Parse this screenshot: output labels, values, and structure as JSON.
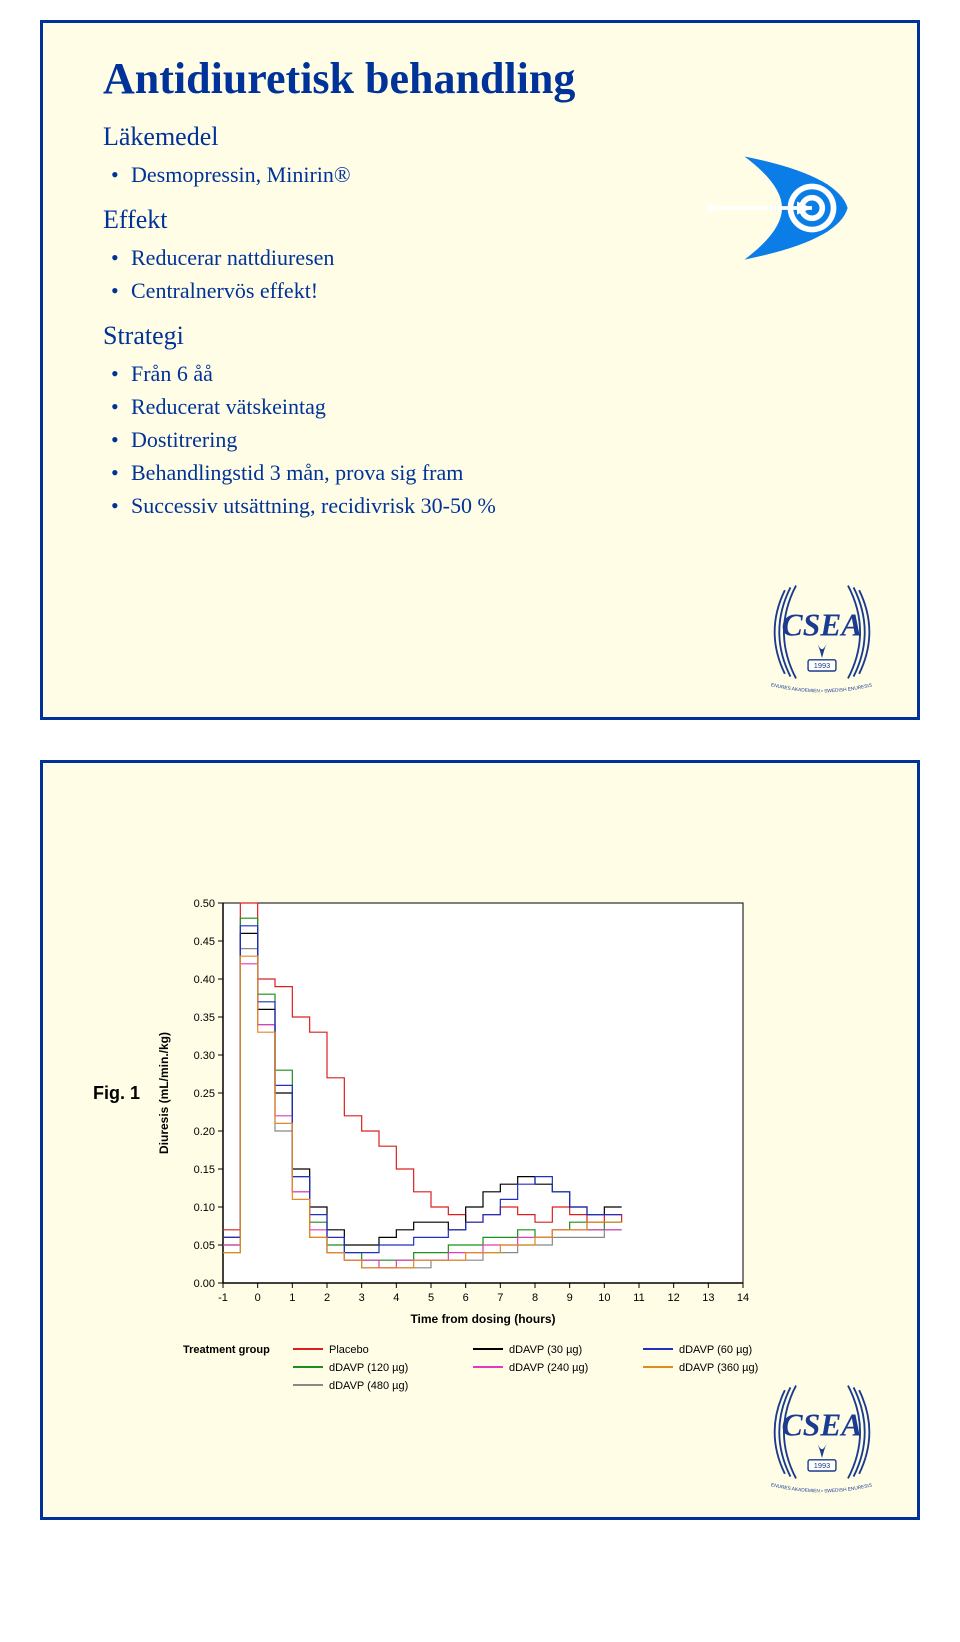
{
  "slide1": {
    "title": "Antidiuretisk behandling",
    "sections": [
      {
        "head": "Läkemedel",
        "items": [
          "Desmopressin, Minirin®"
        ]
      },
      {
        "head": "Effekt",
        "items": [
          "Reducerar nattdiuresen",
          "Centralnervös effekt!"
        ]
      },
      {
        "head": "Strategi",
        "items": [
          "Från 6 åå",
          "Reducerat vätskeintag",
          "Dostitrering",
          "Behandlingstid 3 mån, prova sig fram",
          "Successiv utsättning, recidivrisk 30-50 %"
        ]
      }
    ],
    "icons": {
      "target": {
        "bg": "#0a7de6",
        "accent": "#ffffff"
      }
    },
    "colors": {
      "slideBg": "#fffde6",
      "border": "#003399",
      "text": "#003399",
      "title_fontsize": 44,
      "head_fontsize": 26,
      "item_fontsize": 22
    },
    "logo": {
      "outer": "#1a3b8f",
      "laurel": "#1a3b8f",
      "text_mid": "CSEA",
      "year": "1993",
      "banner": "SVENSKA ENURES AKADEMIEN • SWEDISH ENURESIS ACADEMY"
    }
  },
  "slide2": {
    "fig_label": "Fig. 1",
    "chart": {
      "type": "line-step",
      "xlabel": "Time from dosing (hours)",
      "ylabel": "Diuresis (mL/min./kg)",
      "label_fontsize": 12,
      "tick_fontsize": 11,
      "xlim": [
        -1,
        14
      ],
      "ylim": [
        0,
        0.5
      ],
      "xticks": [
        -1,
        0,
        1,
        2,
        3,
        4,
        5,
        6,
        7,
        8,
        9,
        10,
        11,
        12,
        13,
        14
      ],
      "yticks": [
        0.0,
        0.05,
        0.1,
        0.15,
        0.2,
        0.25,
        0.3,
        0.35,
        0.4,
        0.45,
        0.5
      ],
      "background": "#ffffff",
      "axis_color": "#000000",
      "line_width": 1.2,
      "legend_title": "Treatment group",
      "series": [
        {
          "name": "Placebo",
          "color": "#d92020",
          "points": [
            [
              -1,
              0.07
            ],
            [
              -0.5,
              0.5
            ],
            [
              0,
              0.4
            ],
            [
              0.5,
              0.39
            ],
            [
              1,
              0.35
            ],
            [
              1.5,
              0.33
            ],
            [
              2,
              0.27
            ],
            [
              2.5,
              0.22
            ],
            [
              3,
              0.2
            ],
            [
              3.5,
              0.18
            ],
            [
              4,
              0.15
            ],
            [
              4.5,
              0.12
            ],
            [
              5,
              0.1
            ],
            [
              5.5,
              0.09
            ],
            [
              6,
              0.08
            ],
            [
              6.5,
              0.09
            ],
            [
              7,
              0.1
            ],
            [
              7.5,
              0.09
            ],
            [
              8,
              0.08
            ],
            [
              8.5,
              0.1
            ],
            [
              9,
              0.09
            ],
            [
              9.5,
              0.08
            ],
            [
              10,
              0.09
            ],
            [
              10.5,
              0.08
            ]
          ]
        },
        {
          "name": "dDAVP (120 µg)",
          "color": "#1a8f1a",
          "points": [
            [
              -1,
              0.05
            ],
            [
              -0.5,
              0.48
            ],
            [
              0,
              0.38
            ],
            [
              0.5,
              0.28
            ],
            [
              1,
              0.14
            ],
            [
              1.5,
              0.08
            ],
            [
              2,
              0.05
            ],
            [
              2.5,
              0.04
            ],
            [
              3,
              0.03
            ],
            [
              3.5,
              0.03
            ],
            [
              4,
              0.03
            ],
            [
              4.5,
              0.04
            ],
            [
              5,
              0.04
            ],
            [
              5.5,
              0.05
            ],
            [
              6,
              0.05
            ],
            [
              6.5,
              0.06
            ],
            [
              7,
              0.06
            ],
            [
              7.5,
              0.07
            ],
            [
              8,
              0.06
            ],
            [
              8.5,
              0.07
            ],
            [
              9,
              0.08
            ],
            [
              9.5,
              0.07
            ],
            [
              10,
              0.08
            ],
            [
              10.5,
              0.08
            ]
          ]
        },
        {
          "name": "dDAVP (480 µg)",
          "color": "#888888",
          "points": [
            [
              -1,
              0.04
            ],
            [
              -0.5,
              0.44
            ],
            [
              0,
              0.34
            ],
            [
              0.5,
              0.2
            ],
            [
              1,
              0.12
            ],
            [
              1.5,
              0.06
            ],
            [
              2,
              0.04
            ],
            [
              2.5,
              0.03
            ],
            [
              3,
              0.02
            ],
            [
              3.5,
              0.02
            ],
            [
              4,
              0.02
            ],
            [
              4.5,
              0.02
            ],
            [
              5,
              0.03
            ],
            [
              5.5,
              0.03
            ],
            [
              6,
              0.03
            ],
            [
              6.5,
              0.04
            ],
            [
              7,
              0.04
            ],
            [
              7.5,
              0.05
            ],
            [
              8,
              0.05
            ],
            [
              8.5,
              0.06
            ],
            [
              9,
              0.06
            ],
            [
              9.5,
              0.06
            ],
            [
              10,
              0.07
            ],
            [
              10.5,
              0.07
            ]
          ]
        },
        {
          "name": "dDAVP (30 µg)",
          "color": "#000000",
          "points": [
            [
              -1,
              0.06
            ],
            [
              -0.5,
              0.46
            ],
            [
              0,
              0.36
            ],
            [
              0.5,
              0.25
            ],
            [
              1,
              0.15
            ],
            [
              1.5,
              0.1
            ],
            [
              2,
              0.07
            ],
            [
              2.5,
              0.05
            ],
            [
              3,
              0.05
            ],
            [
              3.5,
              0.06
            ],
            [
              4,
              0.07
            ],
            [
              4.5,
              0.08
            ],
            [
              5,
              0.08
            ],
            [
              5.5,
              0.07
            ],
            [
              6,
              0.1
            ],
            [
              6.5,
              0.12
            ],
            [
              7,
              0.13
            ],
            [
              7.5,
              0.14
            ],
            [
              8,
              0.13
            ],
            [
              8.5,
              0.12
            ],
            [
              9,
              0.1
            ],
            [
              9.5,
              0.09
            ],
            [
              10,
              0.1
            ],
            [
              10.5,
              0.1
            ]
          ]
        },
        {
          "name": "dDAVP (240 µg)",
          "color": "#e03bb8",
          "points": [
            [
              -1,
              0.05
            ],
            [
              -0.5,
              0.42
            ],
            [
              0,
              0.34
            ],
            [
              0.5,
              0.22
            ],
            [
              1,
              0.12
            ],
            [
              1.5,
              0.07
            ],
            [
              2,
              0.04
            ],
            [
              2.5,
              0.03
            ],
            [
              3,
              0.03
            ],
            [
              3.5,
              0.02
            ],
            [
              4,
              0.03
            ],
            [
              4.5,
              0.03
            ],
            [
              5,
              0.03
            ],
            [
              5.5,
              0.04
            ],
            [
              6,
              0.04
            ],
            [
              6.5,
              0.05
            ],
            [
              7,
              0.05
            ],
            [
              7.5,
              0.06
            ],
            [
              8,
              0.06
            ],
            [
              8.5,
              0.07
            ],
            [
              9,
              0.07
            ],
            [
              9.5,
              0.07
            ],
            [
              10,
              0.07
            ],
            [
              10.5,
              0.07
            ]
          ]
        },
        {
          "name": "dDAVP (60 µg)",
          "color": "#2030c0",
          "points": [
            [
              -1,
              0.06
            ],
            [
              -0.5,
              0.47
            ],
            [
              0,
              0.37
            ],
            [
              0.5,
              0.26
            ],
            [
              1,
              0.14
            ],
            [
              1.5,
              0.09
            ],
            [
              2,
              0.06
            ],
            [
              2.5,
              0.04
            ],
            [
              3,
              0.04
            ],
            [
              3.5,
              0.05
            ],
            [
              4,
              0.05
            ],
            [
              4.5,
              0.06
            ],
            [
              5,
              0.06
            ],
            [
              5.5,
              0.07
            ],
            [
              6,
              0.08
            ],
            [
              6.5,
              0.09
            ],
            [
              7,
              0.11
            ],
            [
              7.5,
              0.13
            ],
            [
              8,
              0.14
            ],
            [
              8.5,
              0.12
            ],
            [
              9,
              0.1
            ],
            [
              9.5,
              0.09
            ],
            [
              10,
              0.09
            ],
            [
              10.5,
              0.09
            ]
          ]
        },
        {
          "name": "dDAVP (360 µg)",
          "color": "#e08a20",
          "points": [
            [
              -1,
              0.04
            ],
            [
              -0.5,
              0.43
            ],
            [
              0,
              0.33
            ],
            [
              0.5,
              0.21
            ],
            [
              1,
              0.11
            ],
            [
              1.5,
              0.06
            ],
            [
              2,
              0.04
            ],
            [
              2.5,
              0.03
            ],
            [
              3,
              0.02
            ],
            [
              3.5,
              0.02
            ],
            [
              4,
              0.02
            ],
            [
              4.5,
              0.03
            ],
            [
              5,
              0.03
            ],
            [
              5.5,
              0.03
            ],
            [
              6,
              0.04
            ],
            [
              6.5,
              0.04
            ],
            [
              7,
              0.05
            ],
            [
              7.5,
              0.05
            ],
            [
              8,
              0.06
            ],
            [
              8.5,
              0.07
            ],
            [
              9,
              0.07
            ],
            [
              9.5,
              0.08
            ],
            [
              10,
              0.08
            ],
            [
              10.5,
              0.08
            ]
          ]
        }
      ],
      "legend_layout": [
        [
          {
            "i": 0
          },
          {
            "i": 3
          },
          {
            "i": 5
          }
        ],
        [
          {
            "i": 1
          },
          {
            "i": 4
          },
          {
            "i": 6
          }
        ],
        [
          {
            "i": 2
          }
        ]
      ]
    },
    "logo": {
      "outer": "#1a3b8f",
      "text_mid": "CSEA",
      "year": "1993",
      "banner": "SVENSKA ENURES AKADEMIEN • SWEDISH ENURESIS ACADEMY"
    }
  }
}
